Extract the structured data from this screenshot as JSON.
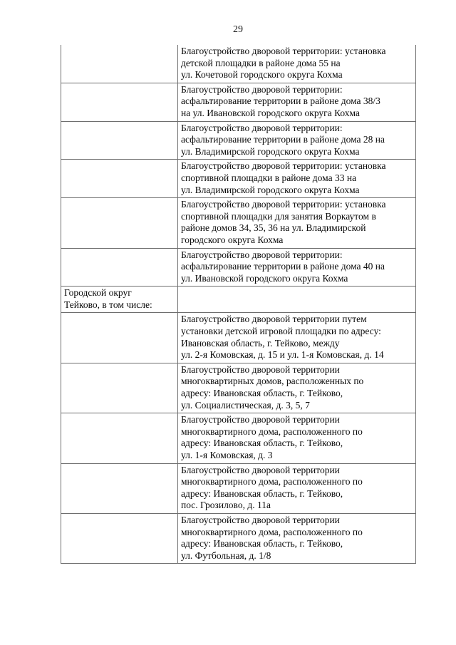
{
  "page": {
    "number": "29"
  },
  "table": {
    "rows": [
      {
        "left": "",
        "right": "Благоустройство дворовой территории: установка\nдетской площадки в районе дома 55 на\nул. Кочетовой городского округа Кохма"
      },
      {
        "left": "",
        "right": "Благоустройство дворовой территории:\nасфальтирование территории в районе дома 38/3\nна ул. Ивановской городского округа Кохма"
      },
      {
        "left": "",
        "right": "Благоустройство дворовой территории:\nасфальтирование территории в районе дома 28 на\nул. Владимирской городского округа Кохма"
      },
      {
        "left": "",
        "right": "Благоустройство дворовой территории: установка\nспортивной площадки в районе дома 33 на\nул. Владимирской городского округа Кохма"
      },
      {
        "left": "",
        "right": "Благоустройство дворовой территории: установка\nспортивной площадки для занятия Воркаутом в\nрайоне домов 34, 35, 36 на ул. Владимирской\nгородского округа Кохма"
      },
      {
        "left": "",
        "right": "Благоустройство дворовой территории:\nасфальтирование территории в районе дома 40 на\nул. Ивановской городского округа Кохма"
      },
      {
        "left": "Городской округ\nТейково, в том числе:",
        "right": ""
      },
      {
        "left": "",
        "right": "Благоустройство дворовой территории путем\nустановки детской игровой площадки по адресу:\nИвановская область, г. Тейково, между\nул. 2-я Комовская, д. 15 и ул. 1-я Комовская, д. 14"
      },
      {
        "left": "",
        "right": "Благоустройство дворовой территории\nмногоквартирных домов, расположенных по\nадресу: Ивановская область, г. Тейково,\nул. Социалистическая, д. 3, 5, 7"
      },
      {
        "left": "",
        "right": "Благоустройство дворовой территории\nмногоквартирного дома, расположенного по\nадресу: Ивановская область, г. Тейково,\nул. 1-я Комовская, д. 3"
      },
      {
        "left": "",
        "right": "Благоустройство дворовой территории\nмногоквартирного дома, расположенного по\nадресу: Ивановская область, г. Тейково,\nпос. Грозилово, д. 11а"
      },
      {
        "left": "",
        "right": "Благоустройство дворовой территории\nмногоквартирного дома, расположенного по\nадресу: Ивановская область, г. Тейково,\nул. Футбольная, д. 1/8"
      }
    ]
  }
}
